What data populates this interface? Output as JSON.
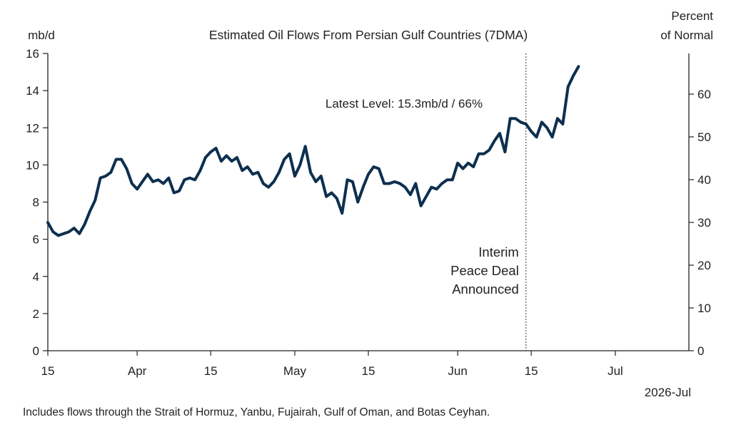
{
  "chart_data": {
    "type": "line",
    "title": "Estimated Oil Flows From Persian Gulf Countries (7DMA)",
    "ylabel_left": "mb/d",
    "ylabel_right": [
      "Percent",
      "of Normal"
    ],
    "ylim_left": [
      0,
      16
    ],
    "ylim_right": [
      0,
      69.5
    ],
    "yticks_left": [
      "0",
      "2",
      "4",
      "6",
      "8",
      "10",
      "12",
      "14",
      "16"
    ],
    "yticks_right": [
      "0",
      "10",
      "20",
      "30",
      "40",
      "50",
      "60"
    ],
    "xlim": [
      "2026-03-15",
      "2026-07-15"
    ],
    "xticks": [
      {
        "date": "2026-03-15",
        "label": "15"
      },
      {
        "date": "2026-04-01",
        "label": "Apr"
      },
      {
        "date": "2026-04-15",
        "label": "15"
      },
      {
        "date": "2026-05-01",
        "label": "May"
      },
      {
        "date": "2026-05-15",
        "label": "15"
      },
      {
        "date": "2026-06-01",
        "label": "Jun"
      },
      {
        "date": "2026-06-15",
        "label": "15"
      },
      {
        "date": "2026-07-01",
        "label": "Jul"
      }
    ],
    "year_label": "2026-Jul",
    "grid": false,
    "line_color": "#0d2f4f",
    "event_line": {
      "date": "2026-06-14",
      "label": [
        "Interim",
        "Peace Deal",
        "Announced"
      ]
    },
    "annotation": "Latest Level: 15.3mb/d / 66%",
    "footnote": "Includes flows through the Strait of Hormuz, Yanbu, Fujairah, Gulf of Oman, and Botas Ceyhan.",
    "series": [
      {
        "x": [
          "2026-03-15",
          "2026-03-16",
          "2026-03-17",
          "2026-03-18",
          "2026-03-19",
          "2026-03-20",
          "2026-03-21",
          "2026-03-22",
          "2026-03-23",
          "2026-03-24",
          "2026-03-25",
          "2026-03-26",
          "2026-03-27",
          "2026-03-28",
          "2026-03-29",
          "2026-03-30",
          "2026-03-31",
          "2026-04-01",
          "2026-04-02",
          "2026-04-03",
          "2026-04-04",
          "2026-04-05",
          "2026-04-06",
          "2026-04-07",
          "2026-04-08",
          "2026-04-09",
          "2026-04-10",
          "2026-04-11",
          "2026-04-12",
          "2026-04-13",
          "2026-04-14",
          "2026-04-15",
          "2026-04-16",
          "2026-04-17",
          "2026-04-18",
          "2026-04-19",
          "2026-04-20",
          "2026-04-21",
          "2026-04-22",
          "2026-04-23",
          "2026-04-24",
          "2026-04-25",
          "2026-04-26",
          "2026-04-27",
          "2026-04-28",
          "2026-04-29",
          "2026-04-30",
          "2026-05-01",
          "2026-05-02",
          "2026-05-03",
          "2026-05-04",
          "2026-05-05",
          "2026-05-06",
          "2026-05-07",
          "2026-05-08",
          "2026-05-09",
          "2026-05-10",
          "2026-05-11",
          "2026-05-12",
          "2026-05-13",
          "2026-05-14",
          "2026-05-15",
          "2026-05-16",
          "2026-05-17",
          "2026-05-18",
          "2026-05-19",
          "2026-05-20",
          "2026-05-21",
          "2026-05-22",
          "2026-05-23",
          "2026-05-24",
          "2026-05-25",
          "2026-05-26",
          "2026-05-27",
          "2026-05-28",
          "2026-05-29",
          "2026-05-30",
          "2026-05-31",
          "2026-06-01",
          "2026-06-02",
          "2026-06-03",
          "2026-06-04",
          "2026-06-05",
          "2026-06-06",
          "2026-06-07",
          "2026-06-08",
          "2026-06-09",
          "2026-06-10",
          "2026-06-11",
          "2026-06-12",
          "2026-06-13",
          "2026-06-14",
          "2026-06-15",
          "2026-06-16",
          "2026-06-17",
          "2026-06-18",
          "2026-06-19",
          "2026-06-20",
          "2026-06-21",
          "2026-06-22",
          "2026-06-23",
          "2026-06-24"
        ],
        "values": [
          6.9,
          6.4,
          6.2,
          6.3,
          6.4,
          6.6,
          6.3,
          6.8,
          7.5,
          8.1,
          9.3,
          9.4,
          9.6,
          10.3,
          10.3,
          9.8,
          9.0,
          8.7,
          9.1,
          9.5,
          9.1,
          9.2,
          9.0,
          9.3,
          8.5,
          8.6,
          9.2,
          9.3,
          9.2,
          9.7,
          10.4,
          10.7,
          10.9,
          10.2,
          10.5,
          10.2,
          10.4,
          9.7,
          9.9,
          9.5,
          9.6,
          9.0,
          8.8,
          9.1,
          9.6,
          10.3,
          10.6,
          9.4,
          10.0,
          11.0,
          9.6,
          9.1,
          9.4,
          8.3,
          8.5,
          8.2,
          7.4,
          9.2,
          9.1,
          8.0,
          8.8,
          9.5,
          9.9,
          9.8,
          9.0,
          9.0,
          9.1,
          9.0,
          8.8,
          8.4,
          9.0,
          7.8,
          8.3,
          8.8,
          8.7,
          9.0,
          9.2,
          9.2,
          10.1,
          9.8,
          10.1,
          9.9,
          10.6,
          10.6,
          10.8,
          11.3,
          11.7,
          10.7,
          12.5,
          12.5,
          12.3,
          12.2,
          11.8,
          11.5,
          12.3,
          12.0,
          11.5,
          12.5,
          12.2,
          14.2,
          14.8,
          15.3
        ]
      }
    ]
  }
}
